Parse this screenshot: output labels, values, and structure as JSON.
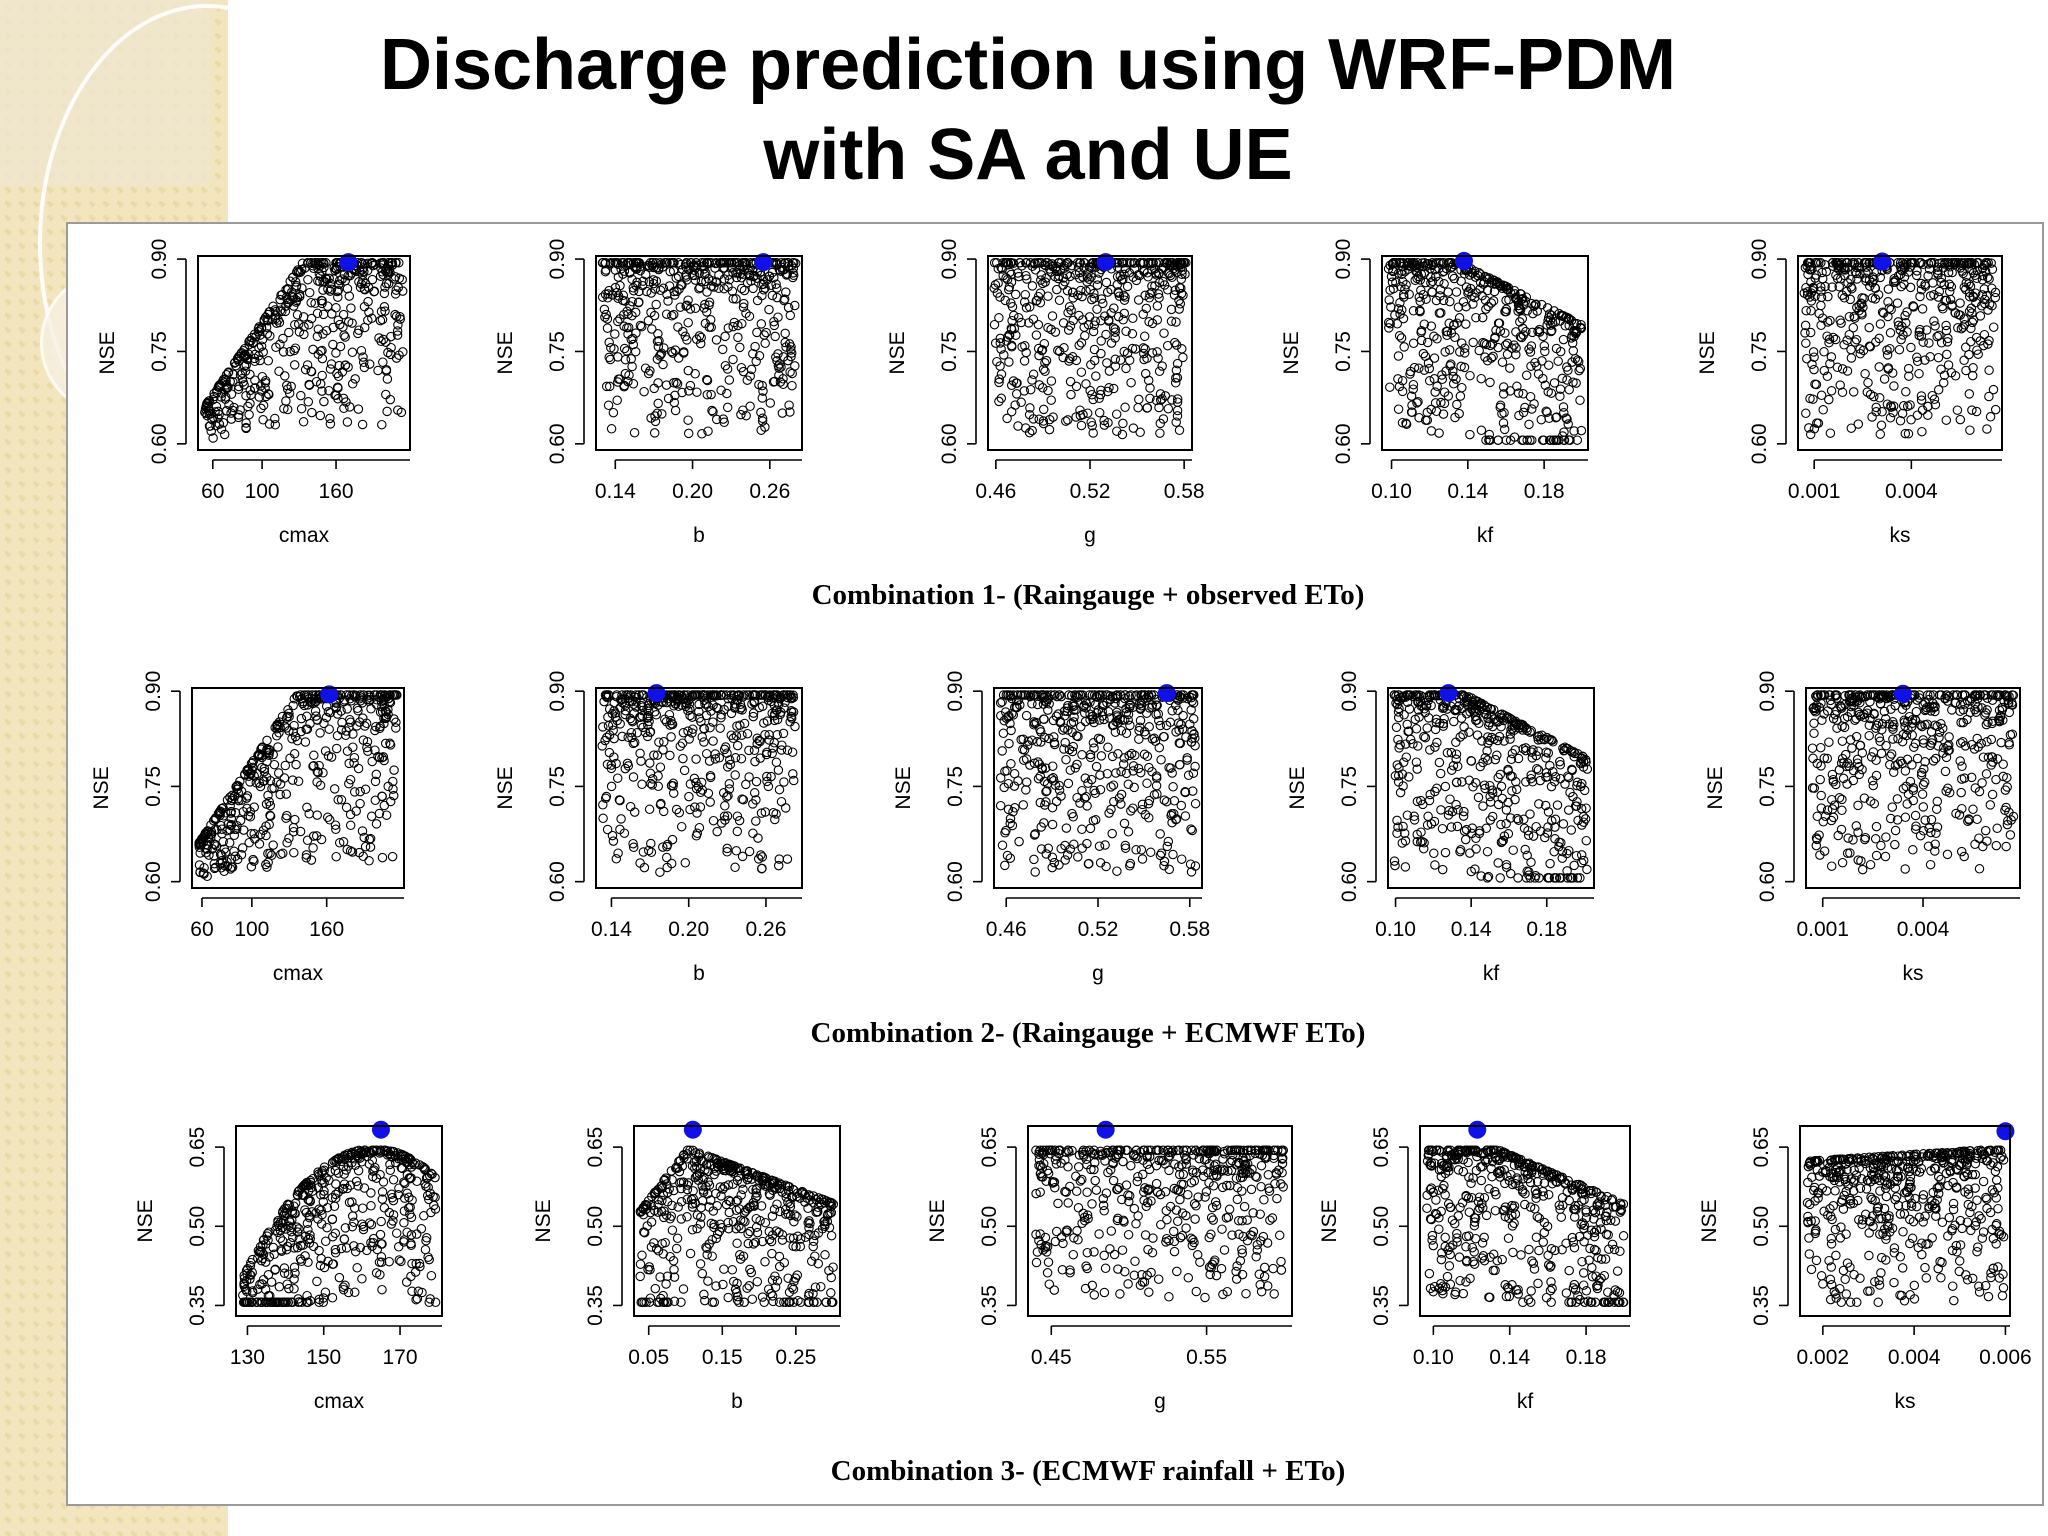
{
  "title": {
    "line1": "Discharge prediction using WRF-PDM",
    "line2": "with SA and UE"
  },
  "chart_data": [
    {
      "type": "scatter",
      "caption": "Combination 1- (Raingauge + observed ETo)",
      "panels": [
        {
          "xlabel": "cmax",
          "ylabel": "NSE",
          "xlim": [
            48,
            220
          ],
          "ylim": [
            0.59,
            0.905
          ],
          "xticks": [
            60,
            100,
            160
          ],
          "yticks": [
            0.6,
            0.75,
            0.9
          ],
          "ytick_labels": [
            "0.60",
            "0.75",
            "0.90"
          ],
          "shape": "rising",
          "best": {
            "x": 170,
            "y": 0.895
          }
        },
        {
          "xlabel": "b",
          "ylabel": "NSE",
          "xlim": [
            0.125,
            0.285
          ],
          "ylim": [
            0.59,
            0.905
          ],
          "xticks": [
            0.14,
            0.2,
            0.26
          ],
          "yticks": [
            0.6,
            0.75,
            0.9
          ],
          "ytick_labels": [
            "0.60",
            "0.75",
            "0.90"
          ],
          "shape": "flat",
          "best": {
            "x": 0.255,
            "y": 0.895
          }
        },
        {
          "xlabel": "g",
          "ylabel": "NSE",
          "xlim": [
            0.455,
            0.585
          ],
          "ylim": [
            0.59,
            0.905
          ],
          "xticks": [
            0.46,
            0.52,
            0.58
          ],
          "yticks": [
            0.6,
            0.75,
            0.9
          ],
          "ytick_labels": [
            "0.60",
            "0.75",
            "0.90"
          ],
          "shape": "flat",
          "best": {
            "x": 0.53,
            "y": 0.895
          }
        },
        {
          "xlabel": "kf",
          "ylabel": "NSE",
          "xlim": [
            0.095,
            0.203
          ],
          "ylim": [
            0.59,
            0.905
          ],
          "xticks": [
            0.1,
            0.14,
            0.18
          ],
          "yticks": [
            0.6,
            0.75,
            0.9
          ],
          "ytick_labels": [
            "0.60",
            "0.75",
            "0.90"
          ],
          "shape": "falling",
          "best": {
            "x": 0.138,
            "y": 0.897
          }
        },
        {
          "xlabel": "ks",
          "ylabel": "NSE",
          "xlim": [
            0.0005,
            0.0068
          ],
          "ylim": [
            0.59,
            0.905
          ],
          "xticks": [
            0.001,
            0.004
          ],
          "yticks": [
            0.6,
            0.75,
            0.9
          ],
          "ytick_labels": [
            "0.60",
            "0.75",
            "0.90"
          ],
          "shape": "flat",
          "best": {
            "x": 0.0031,
            "y": 0.896
          }
        }
      ]
    },
    {
      "type": "scatter",
      "caption": "Combination 2- (Raingauge + ECMWF ETo)",
      "panels": [
        {
          "xlabel": "cmax",
          "ylabel": "NSE",
          "xlim": [
            52,
            222
          ],
          "ylim": [
            0.59,
            0.905
          ],
          "xticks": [
            60,
            100,
            160
          ],
          "yticks": [
            0.6,
            0.75,
            0.9
          ],
          "ytick_labels": [
            "0.60",
            "0.75",
            "0.90"
          ],
          "shape": "rising",
          "best": {
            "x": 162,
            "y": 0.895
          }
        },
        {
          "xlabel": "b",
          "ylabel": "NSE",
          "xlim": [
            0.128,
            0.288
          ],
          "ylim": [
            0.59,
            0.905
          ],
          "xticks": [
            0.14,
            0.2,
            0.26
          ],
          "yticks": [
            0.6,
            0.75,
            0.9
          ],
          "ytick_labels": [
            "0.60",
            "0.75",
            "0.90"
          ],
          "shape": "flat",
          "best": {
            "x": 0.175,
            "y": 0.897
          }
        },
        {
          "xlabel": "g",
          "ylabel": "NSE",
          "xlim": [
            0.452,
            0.588
          ],
          "ylim": [
            0.59,
            0.905
          ],
          "xticks": [
            0.46,
            0.52,
            0.58
          ],
          "yticks": [
            0.6,
            0.75,
            0.9
          ],
          "ytick_labels": [
            "0.60",
            "0.75",
            "0.90"
          ],
          "shape": "flat",
          "best": {
            "x": 0.565,
            "y": 0.897
          }
        },
        {
          "xlabel": "kf",
          "ylabel": "NSE",
          "xlim": [
            0.096,
            0.205
          ],
          "ylim": [
            0.59,
            0.905
          ],
          "xticks": [
            0.1,
            0.14,
            0.18
          ],
          "yticks": [
            0.6,
            0.75,
            0.9
          ],
          "ytick_labels": [
            "0.60",
            "0.75",
            "0.90"
          ],
          "shape": "falling",
          "best": {
            "x": 0.128,
            "y": 0.897
          }
        },
        {
          "xlabel": "ks",
          "ylabel": "NSE",
          "xlim": [
            0.0005,
            0.0069
          ],
          "ylim": [
            0.59,
            0.905
          ],
          "xticks": [
            0.001,
            0.004
          ],
          "yticks": [
            0.6,
            0.75,
            0.9
          ],
          "ytick_labels": [
            "0.60",
            "0.75",
            "0.90"
          ],
          "shape": "flat",
          "best": {
            "x": 0.0034,
            "y": 0.896
          }
        }
      ]
    },
    {
      "type": "scatter",
      "caption": "Combination 3- (ECMWF rainfall + ETo)",
      "panels": [
        {
          "xlabel": "cmax",
          "ylabel": "NSE",
          "xlim": [
            127,
            181
          ],
          "ylim": [
            0.33,
            0.69
          ],
          "xticks": [
            130,
            150,
            170
          ],
          "yticks": [
            0.35,
            0.5,
            0.65
          ],
          "ytick_labels": [
            "0.35",
            "0.50",
            "0.65"
          ],
          "shape": "hump",
          "best": {
            "x": 165,
            "y": 0.683
          }
        },
        {
          "xlabel": "b",
          "ylabel": "NSE",
          "xlim": [
            0.03,
            0.31
          ],
          "ylim": [
            0.33,
            0.69
          ],
          "xticks": [
            0.05,
            0.15,
            0.25
          ],
          "yticks": [
            0.35,
            0.5,
            0.65
          ],
          "ytick_labels": [
            "0.35",
            "0.50",
            "0.65"
          ],
          "shape": "peak-left",
          "best": {
            "x": 0.11,
            "y": 0.683
          }
        },
        {
          "xlabel": "g",
          "ylabel": "NSE",
          "xlim": [
            0.435,
            0.605
          ],
          "ylim": [
            0.33,
            0.69
          ],
          "xticks": [
            0.45,
            0.55
          ],
          "yticks": [
            0.35,
            0.5,
            0.65
          ],
          "ytick_labels": [
            "0.35",
            "0.50",
            "0.65"
          ],
          "shape": "flat",
          "best": {
            "x": 0.485,
            "y": 0.683
          }
        },
        {
          "xlabel": "kf",
          "ylabel": "NSE",
          "xlim": [
            0.093,
            0.203
          ],
          "ylim": [
            0.33,
            0.69
          ],
          "xticks": [
            0.1,
            0.14,
            0.18
          ],
          "yticks": [
            0.35,
            0.5,
            0.65
          ],
          "ytick_labels": [
            "0.35",
            "0.50",
            "0.65"
          ],
          "shape": "falling",
          "best": {
            "x": 0.123,
            "y": 0.683
          }
        },
        {
          "xlabel": "ks",
          "ylabel": "NSE",
          "xlim": [
            0.0015,
            0.0061
          ],
          "ylim": [
            0.33,
            0.69
          ],
          "xticks": [
            0.002,
            0.004,
            0.006
          ],
          "yticks": [
            0.35,
            0.5,
            0.65
          ],
          "ytick_labels": [
            "0.35",
            "0.50",
            "0.65"
          ],
          "shape": "rising",
          "best": {
            "x": 0.006,
            "y": 0.68
          }
        }
      ]
    }
  ],
  "colors": {
    "points": "#000000",
    "best_point": "#1010e8",
    "frame": "#9a9a9a"
  }
}
